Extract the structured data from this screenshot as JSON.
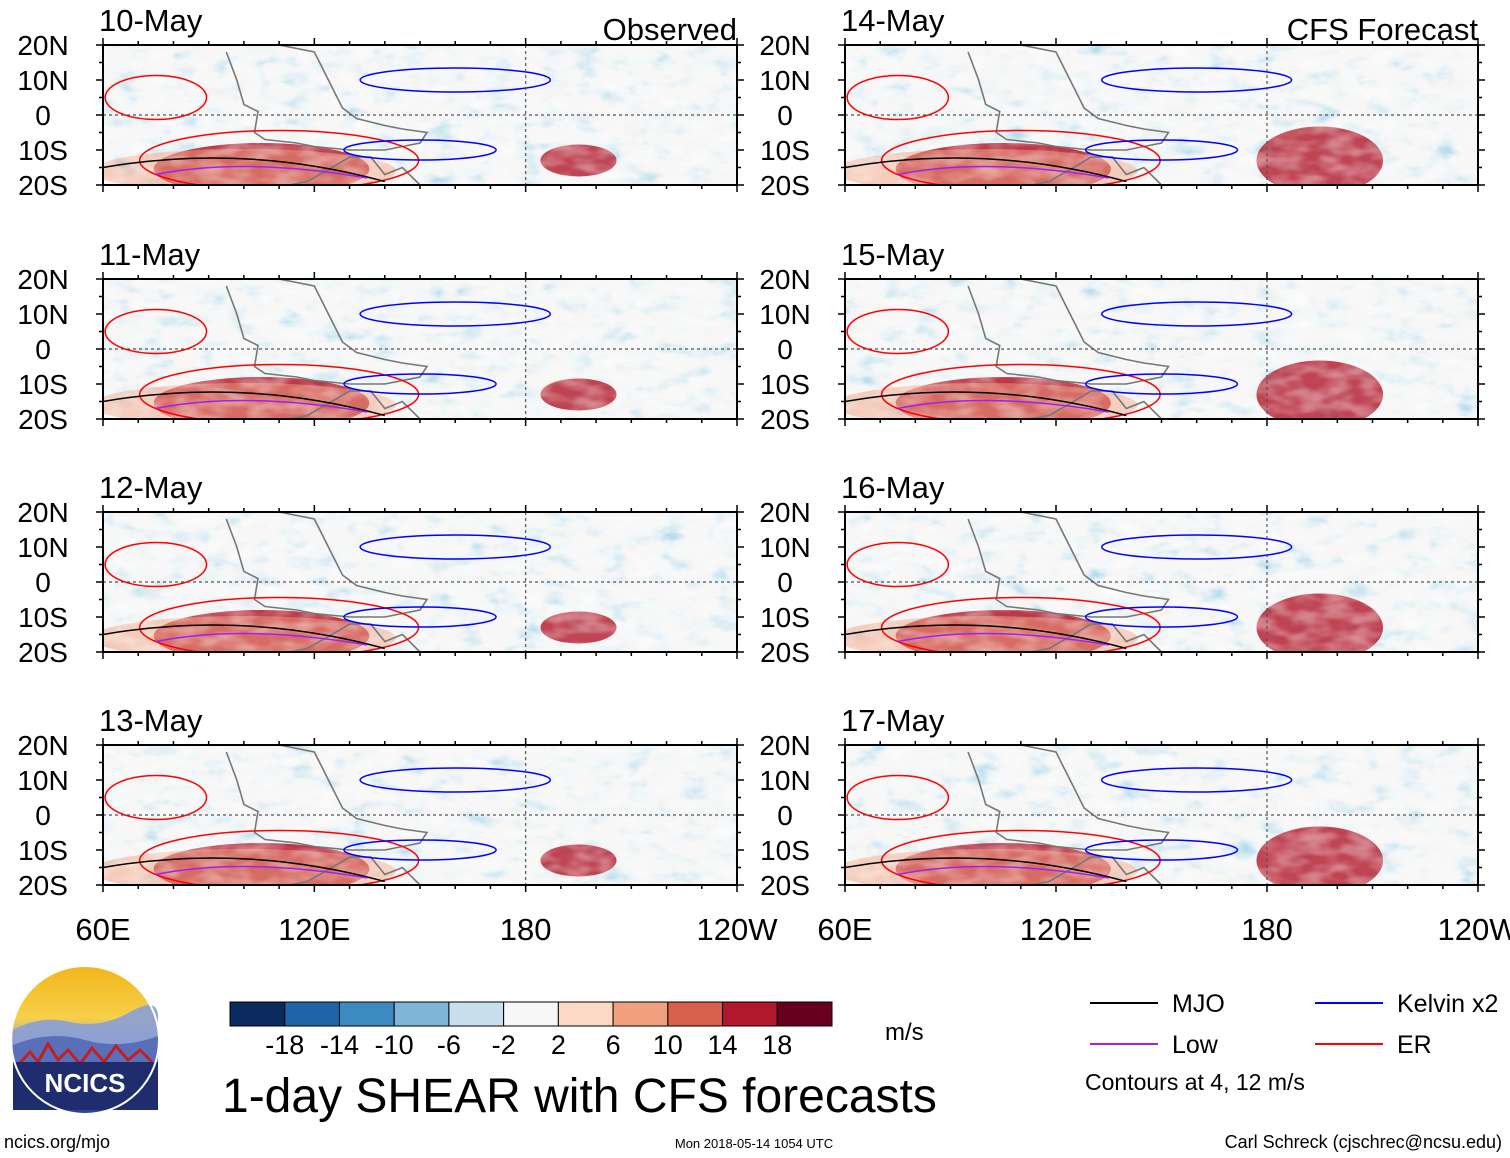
{
  "chart_data": {
    "type": "heatmap",
    "title": "1-day SHEAR with CFS forecasts",
    "variable": "SHEAR",
    "units": "m/s",
    "panel_groups": [
      {
        "label": "Observed",
        "dates": [
          "10-May",
          "11-May",
          "12-May",
          "13-May"
        ]
      },
      {
        "label": "CFS Forecast",
        "dates": [
          "14-May",
          "15-May",
          "16-May",
          "17-May"
        ]
      }
    ],
    "x_axis": {
      "ticks": [
        "60E",
        "120E",
        "180",
        "120W"
      ],
      "range_deg_east": [
        60,
        240
      ]
    },
    "y_axis": {
      "ticks": [
        "20N",
        "10N",
        "0",
        "10S",
        "20S"
      ],
      "range_deg": [
        -20,
        20
      ]
    },
    "colorbar": {
      "levels": [
        "-18",
        "-14",
        "-10",
        "-6",
        "-2",
        "2",
        "6",
        "10",
        "14",
        "18"
      ],
      "colors": [
        "#0a2a5e",
        "#1f63a8",
        "#3d8ac2",
        "#7fb5d8",
        "#c8e0ee",
        "#f7f7f7",
        "#fcd9c4",
        "#f1a07e",
        "#d6604d",
        "#b2182b",
        "#67001f"
      ]
    },
    "legend": [
      {
        "name": "MJO",
        "color": "#000000"
      },
      {
        "name": "Kelvin x2",
        "color": "#0000ff"
      },
      {
        "name": "Low",
        "color": "#a020f0"
      },
      {
        "name": "ER",
        "color": "#ff0000"
      }
    ],
    "contour_note": "Contours at 4, 12 m/s"
  },
  "branding": {
    "logo_text": "NCICS",
    "website": "ncics.org/mjo",
    "timestamp": "Mon 2018-05-14 1054 UTC",
    "author": "Carl Schreck (cjschrec@ncsu.edu)"
  }
}
